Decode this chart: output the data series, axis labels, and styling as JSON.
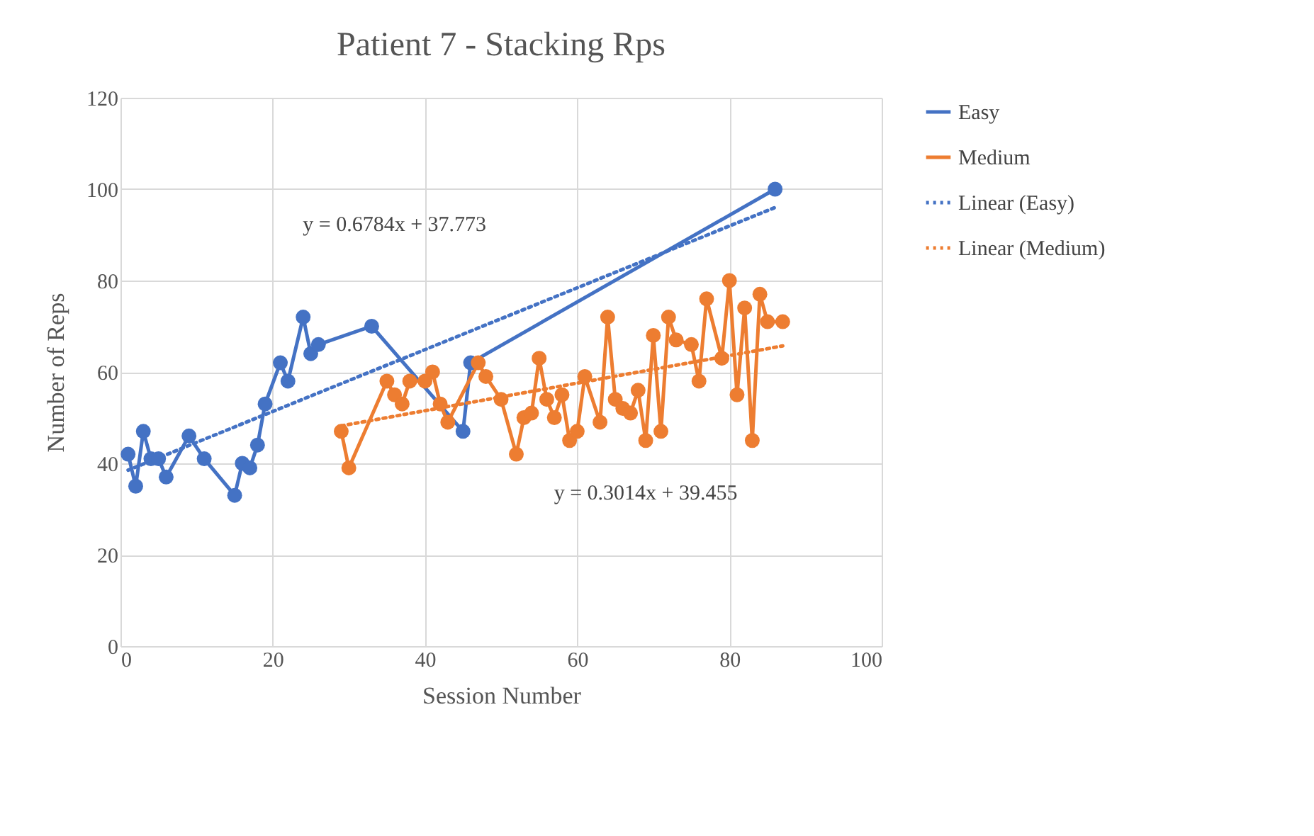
{
  "chart_data": {
    "type": "line",
    "title": "Patient 7 - Stacking Rps",
    "xlabel": "Session Number",
    "ylabel": "Number of Reps",
    "xlim": [
      0,
      100
    ],
    "xticks": [
      0,
      20,
      40,
      60,
      80,
      100
    ],
    "ylim": [
      0,
      120
    ],
    "yticks": [
      0,
      20,
      40,
      60,
      80,
      100,
      120
    ],
    "grid": true,
    "legend": "right",
    "series": [
      {
        "name": "Easy",
        "marker": "circle",
        "line_style": "solid",
        "color": "#4472c4",
        "x": [
          1,
          2,
          3,
          4,
          5,
          6,
          9,
          11,
          15,
          16,
          17,
          18,
          19,
          21,
          22,
          24,
          25,
          26,
          33,
          45,
          46,
          86
        ],
        "values": [
          42,
          35,
          47,
          41,
          41,
          37,
          46,
          41,
          33,
          40,
          39,
          44,
          53,
          62,
          58,
          72,
          64,
          66,
          70,
          47,
          62,
          100
        ]
      },
      {
        "name": "Medium",
        "marker": "circle",
        "line_style": "solid",
        "color": "#ed7d31",
        "x": [
          29,
          30,
          35,
          36,
          37,
          38,
          40,
          41,
          42,
          43,
          47,
          48,
          50,
          52,
          53,
          54,
          55,
          56,
          57,
          58,
          59,
          60,
          61,
          63,
          64,
          65,
          66,
          67,
          68,
          69,
          70,
          71,
          72,
          73,
          75,
          76,
          77,
          79,
          80,
          81,
          82,
          83,
          84,
          85,
          87
        ],
        "values": [
          47,
          39,
          58,
          55,
          53,
          58,
          58,
          60,
          53,
          49,
          62,
          59,
          54,
          42,
          50,
          51,
          63,
          54,
          50,
          55,
          45,
          47,
          59,
          49,
          72,
          54,
          52,
          51,
          56,
          45,
          68,
          47,
          72,
          67,
          66,
          58,
          76,
          63,
          80,
          55,
          74,
          45,
          77,
          71,
          71
        ]
      },
      {
        "name": "Linear (Easy)",
        "marker": "none",
        "line_style": "dotted",
        "color": "#4472c4",
        "x": [
          1,
          86
        ],
        "values": [
          38.5,
          96
        ]
      },
      {
        "name": "Linear (Medium)",
        "marker": "none",
        "line_style": "dotted",
        "color": "#ed7d31",
        "x": [
          29,
          87
        ],
        "values": [
          48.2,
          65.7
        ]
      }
    ],
    "annotations": [
      "y = 0.6784x + 37.773",
      "y = 0.3014x + 39.455"
    ]
  }
}
